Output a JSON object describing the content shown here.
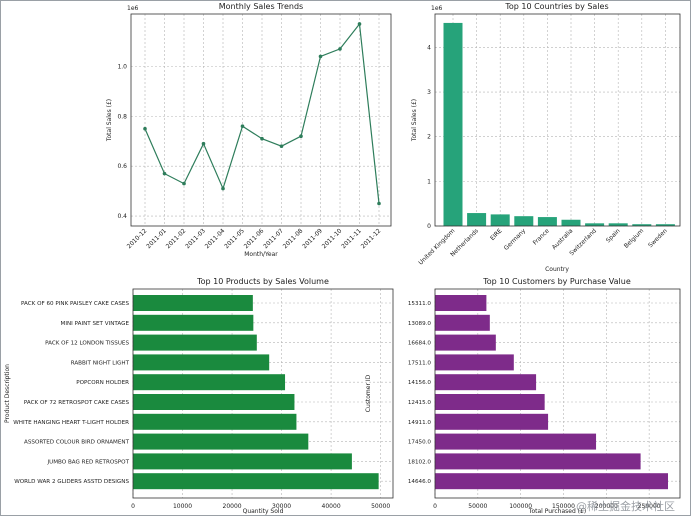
{
  "watermark": "@稀土掘金技术社区",
  "chart_data": [
    {
      "type": "line",
      "title": "Monthly Sales Trends",
      "xlabel": "Month/Year",
      "ylabel": "Total Sales (£)",
      "y_exponent": "1e6",
      "categories": [
        "2010-12",
        "2011-01",
        "2011-02",
        "2011-03",
        "2011-04",
        "2011-05",
        "2011-06",
        "2011-07",
        "2011-08",
        "2011-09",
        "2011-10",
        "2011-11",
        "2011-12"
      ],
      "values": [
        0.75,
        0.57,
        0.53,
        0.69,
        0.51,
        0.76,
        0.71,
        0.68,
        0.72,
        1.04,
        1.07,
        1.17,
        0.45
      ],
      "ylim": [
        0.36,
        1.21
      ],
      "yticks": [
        "0.4",
        "0.6",
        "0.8",
        "1.0"
      ],
      "ytick_values": [
        0.4,
        0.6,
        0.8,
        1.0
      ],
      "grid": true,
      "colors": {
        "series": "#2e7d5b"
      }
    },
    {
      "type": "bar",
      "title": "Top 10 Countries by Sales",
      "xlabel": "Country",
      "ylabel": "Total Sales (£)",
      "y_exponent": "1e6",
      "categories": [
        "United Kingdom",
        "Netherlands",
        "EIRE",
        "Germany",
        "France",
        "Australia",
        "Switzerland",
        "Spain",
        "Belgium",
        "Sweden"
      ],
      "values": [
        4.55,
        0.29,
        0.26,
        0.22,
        0.2,
        0.14,
        0.06,
        0.06,
        0.04,
        0.04
      ],
      "ylim": [
        0,
        4.75
      ],
      "yticks": [
        "0",
        "1",
        "2",
        "3",
        "4"
      ],
      "ytick_values": [
        0,
        1,
        2,
        3,
        4
      ],
      "grid": true,
      "colors": {
        "bar": "#26a37a"
      }
    },
    {
      "type": "bar",
      "orientation": "horizontal",
      "title": "Top 10 Products by Sales Volume",
      "xlabel": "Quantity Sold",
      "ylabel": "Product Description",
      "categories": [
        "PACK OF 60 PINK PAISLEY CAKE CASES",
        "MINI PAINT SET VINTAGE",
        "PACK OF 12 LONDON TISSUES",
        "RABBIT NIGHT LIGHT",
        "POPCORN HOLDER",
        "PACK OF 72 RETROSPOT CAKE CASES",
        "WHITE HANGING HEART T-LIGHT HOLDER",
        "ASSORTED COLOUR BIRD ORNAMENT",
        "JUMBO BAG RED RETROSPOT",
        "WORLD WAR 2 GLIDERS ASSTD DESIGNS"
      ],
      "values": [
        24200,
        24300,
        25000,
        27500,
        30700,
        32600,
        33000,
        35400,
        44200,
        49600
      ],
      "xlim": [
        0,
        52500
      ],
      "xticks": [
        "0",
        "10000",
        "20000",
        "30000",
        "40000",
        "50000"
      ],
      "xtick_values": [
        0,
        10000,
        20000,
        30000,
        40000,
        50000
      ],
      "grid": true,
      "colors": {
        "bar": "#1a8a3e"
      }
    },
    {
      "type": "bar",
      "orientation": "horizontal",
      "title": "Top 10 Customers by Purchase Value",
      "xlabel": "Total Purchased (£)",
      "ylabel": "Customer ID",
      "categories": [
        "15311.0",
        "13089.0",
        "16684.0",
        "17511.0",
        "14156.0",
        "12415.0",
        "14911.0",
        "17450.0",
        "18102.0",
        "14646.0"
      ],
      "values": [
        60000,
        64000,
        71000,
        92000,
        118000,
        128000,
        132000,
        188000,
        240000,
        272000
      ],
      "xlim": [
        0,
        286000
      ],
      "xticks": [
        "0",
        "50000",
        "100000",
        "150000",
        "200000",
        "250000"
      ],
      "xtick_values": [
        0,
        50000,
        100000,
        150000,
        200000,
        250000
      ],
      "grid": true,
      "colors": {
        "bar": "#7e2b8a"
      }
    }
  ]
}
